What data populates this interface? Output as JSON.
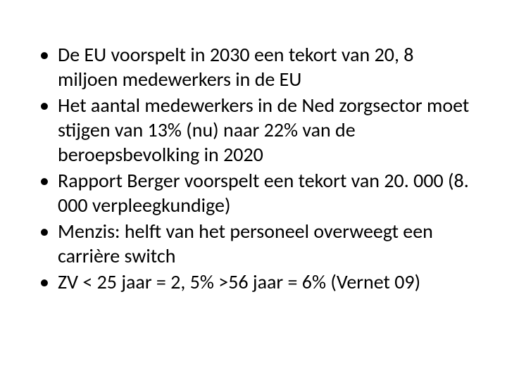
{
  "slide": {
    "bullets": [
      "De EU voorspelt in 2030 een tekort van 20, 8 miljoen medewerkers in de EU",
      "Het aantal medewerkers in de Ned zorgsector moet stijgen van 13% (nu) naar 22% van de beroepsbevolking in 2020",
      "Rapport Berger voorspelt een tekort van 20. 000 (8. 000 verpleegkundige)",
      "Menzis: helft van het personeel overweegt een carrière switch",
      "ZV < 25 jaar = 2, 5%  >56 jaar = 6% (Vernet 09)"
    ],
    "text_color": "#000000",
    "background_color": "#ffffff",
    "font_size": 28
  }
}
